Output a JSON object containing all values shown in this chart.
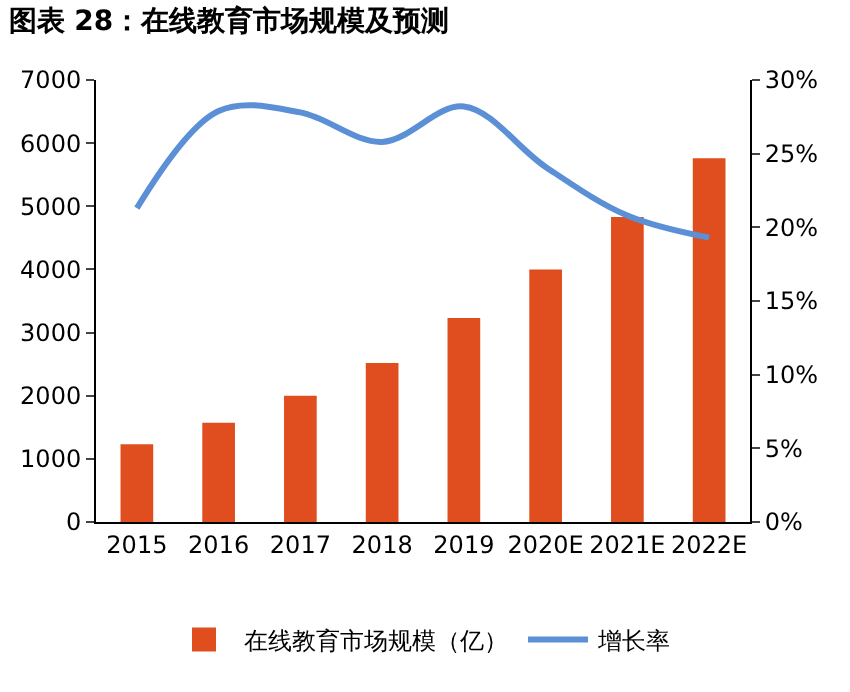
{
  "chart_data": {
    "type": "bar",
    "title": "图表 28：在线教育市场规模及预测",
    "categories": [
      "2015",
      "2016",
      "2017",
      "2018",
      "2019",
      "2020E",
      "2021E",
      "2022E"
    ],
    "series": [
      {
        "name": "在线教育市场规模（亿）",
        "color": "#e04e1f",
        "values": [
          1230,
          1570,
          2000,
          2520,
          3230,
          4000,
          4830,
          5760
        ]
      },
      {
        "name": "增长率",
        "type": "line",
        "axis": "y2",
        "color": "#5b8fd6",
        "values": [
          21.3,
          27.9,
          27.8,
          25.8,
          28.2,
          24.1,
          20.8,
          19.3
        ]
      }
    ],
    "ylim": [
      0,
      7000
    ],
    "yticks": [
      0,
      1000,
      2000,
      3000,
      4000,
      5000,
      6000,
      7000
    ],
    "y2lim": [
      0,
      30
    ],
    "y2ticks": [
      {
        "value": 0,
        "label": "0%"
      },
      {
        "value": 5,
        "label": "5%"
      },
      {
        "value": 10,
        "label": "10%"
      },
      {
        "value": 15,
        "label": "15%"
      },
      {
        "value": 20,
        "label": "20%"
      },
      {
        "value": 25,
        "label": "25%"
      },
      {
        "value": 30,
        "label": "30%"
      }
    ],
    "grid": false,
    "legend": "bottom"
  }
}
